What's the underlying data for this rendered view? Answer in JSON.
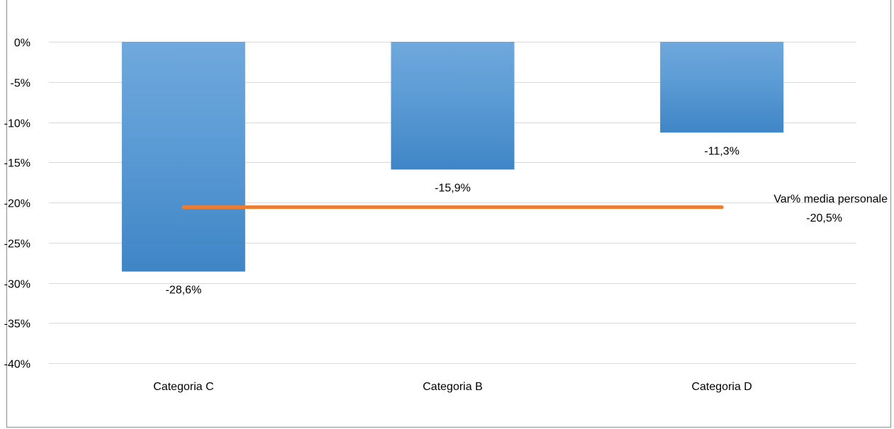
{
  "chart_data": {
    "type": "bar",
    "categories": [
      "Categoria C",
      "Categoria B",
      "Categoria D"
    ],
    "values": [
      -28.6,
      -15.9,
      -11.3
    ],
    "value_labels": [
      "-28,6%",
      "-15,9%",
      "-11,3%"
    ],
    "ylim": [
      -40,
      0
    ],
    "yticks": [
      0,
      -5,
      -10,
      -15,
      -20,
      -25,
      -30,
      -35,
      -40
    ],
    "ytick_labels": [
      "0%",
      "-5%",
      "-10%",
      "-15%",
      "-20%",
      "-25%",
      "-30%",
      "-35%",
      "-40%"
    ],
    "grid": true,
    "title": "",
    "xlabel": "",
    "ylabel": "",
    "reference_line": {
      "value": -20.5,
      "label": "Var% media personale",
      "value_label": "-20,5%",
      "color": "#ed7d31"
    },
    "colors": {
      "bar_top": "#6fa8dc",
      "bar_mid": "#5b9bd5",
      "bar_bottom": "#3f85c6",
      "gridline": "#d9d9d9"
    }
  }
}
